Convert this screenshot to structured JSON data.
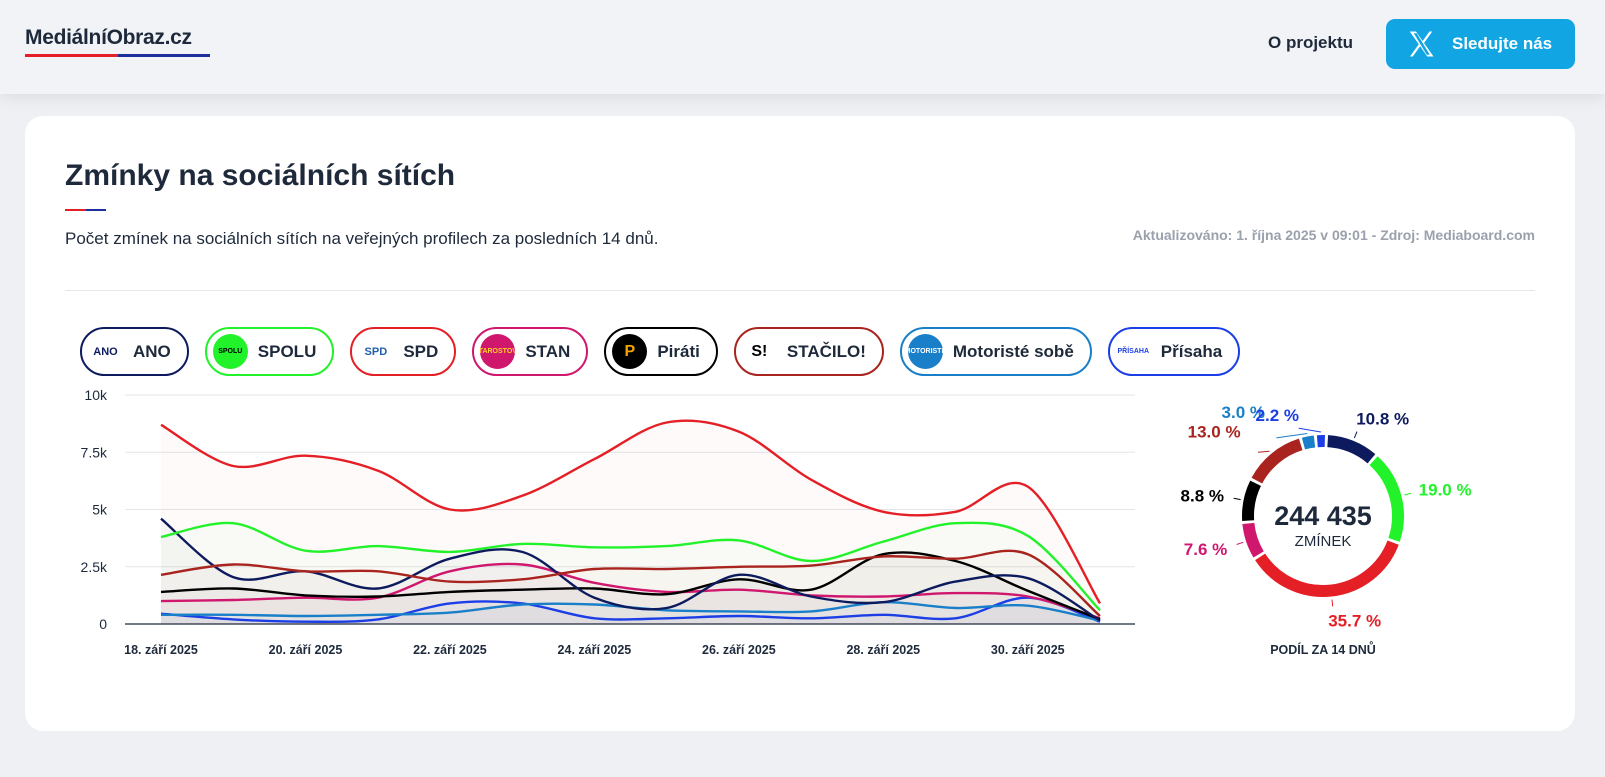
{
  "header": {
    "logo": "MediálníObraz.cz",
    "nav_about": "O projektu",
    "follow_label": "Sledujte nás",
    "follow_icon": "x-logo-icon"
  },
  "section": {
    "title": "Zmínky na sociálních sítích",
    "subtitle": "Počet zmínek na sociálních sítích na veřejných profilech za posledních 14 dnů.",
    "updated": "Aktualizováno: 1. října 2025 v 09:01 - Zdroj: Mediaboard.com"
  },
  "parties": [
    {
      "name": "ANO",
      "color": "#0d1b5e",
      "badge_bg": "#ffffff",
      "badge_text": "ANO",
      "badge_text_color": "#0d1b5e"
    },
    {
      "name": "SPOLU",
      "color": "#22f22a",
      "badge_bg": "#22f22a",
      "badge_text": "SPOLU",
      "badge_text_color": "#000000"
    },
    {
      "name": "SPD",
      "color": "#e41f26",
      "badge_bg": "#ffffff",
      "badge_text": "SPD",
      "badge_text_color": "#1f5ea8"
    },
    {
      "name": "STAN",
      "color": "#d0176e",
      "badge_bg": "#d0176e",
      "badge_text": "STAROSTOVÉ",
      "badge_text_color": "#ffd21f"
    },
    {
      "name": "Piráti",
      "color": "#000000",
      "badge_bg": "#000000",
      "badge_text": "P",
      "badge_text_color": "#f4a300"
    },
    {
      "name": "STAČILO!",
      "color": "#a9241e",
      "badge_bg": "#ffffff",
      "badge_text": "S!",
      "badge_text_color": "#000000"
    },
    {
      "name": "Motoristé sobě",
      "color": "#1a7fc9",
      "badge_bg": "#1a7fc9",
      "badge_text": "MOTORISTÉ",
      "badge_text_color": "#ffffff"
    },
    {
      "name": "Přísaha",
      "color": "#1b3ee6",
      "badge_bg": "#ffffff",
      "badge_text": "PŘÍSAHA",
      "badge_text_color": "#1b3ee6"
    }
  ],
  "chart_data": {
    "type": "area",
    "y_ticks": [
      "0",
      "2.5k",
      "5k",
      "7.5k",
      "10k"
    ],
    "ylim": [
      0,
      10000
    ],
    "x_tick_labels": [
      "18. září 2025",
      "20. září 2025",
      "22. září 2025",
      "24. září 2025",
      "26. září 2025",
      "28. září 2025",
      "30. září 2025"
    ],
    "x": [
      "2025-09-18",
      "2025-09-19",
      "2025-09-20",
      "2025-09-21",
      "2025-09-22",
      "2025-09-23",
      "2025-09-24",
      "2025-09-25",
      "2025-09-26",
      "2025-09-27",
      "2025-09-28",
      "2025-09-29",
      "2025-09-30",
      "2025-10-01"
    ],
    "series": [
      {
        "name": "SPD",
        "color": "#e41f26",
        "values": [
          8700,
          6900,
          7350,
          6700,
          5000,
          5600,
          7200,
          8800,
          8400,
          6300,
          4900,
          4900,
          6000,
          900
        ]
      },
      {
        "name": "SPOLU",
        "color": "#22f22a",
        "values": [
          3800,
          4400,
          3200,
          3400,
          3150,
          3500,
          3350,
          3400,
          3650,
          2750,
          3600,
          4400,
          3850,
          600
        ]
      },
      {
        "name": "STAČILO!",
        "color": "#a9241e",
        "values": [
          2150,
          2600,
          2300,
          2300,
          1850,
          1950,
          2400,
          2400,
          2500,
          2550,
          2950,
          2850,
          3050,
          350
        ]
      },
      {
        "name": "ANO",
        "color": "#0d1b5e",
        "values": [
          4600,
          2050,
          2300,
          1550,
          2850,
          3150,
          1150,
          700,
          2150,
          1200,
          950,
          1850,
          2000,
          150
        ]
      },
      {
        "name": "Piráti",
        "color": "#000000",
        "values": [
          1400,
          1550,
          1250,
          1200,
          1400,
          1500,
          1550,
          1300,
          1950,
          1500,
          3050,
          2750,
          1450,
          200
        ]
      },
      {
        "name": "STAN",
        "color": "#d0176e",
        "values": [
          1000,
          1050,
          1150,
          1150,
          2300,
          2600,
          1800,
          1400,
          1500,
          1250,
          1200,
          1350,
          1200,
          250
        ]
      },
      {
        "name": "Motoristé sobě",
        "color": "#1a7fc9",
        "values": [
          400,
          400,
          350,
          400,
          500,
          850,
          850,
          600,
          550,
          550,
          950,
          700,
          800,
          150
        ]
      },
      {
        "name": "Přísaha",
        "color": "#1b3ee6",
        "values": [
          450,
          200,
          100,
          200,
          900,
          900,
          250,
          250,
          350,
          250,
          400,
          250,
          1150,
          100
        ]
      }
    ]
  },
  "donut": {
    "total": "244 435",
    "total_caption": "ZMÍNEK",
    "caption": "PODÍL ZA 14 DNŮ",
    "slices": [
      {
        "name": "ANO",
        "value": 10.8,
        "label": "10.8 %",
        "color": "#0d1b5e"
      },
      {
        "name": "SPOLU",
        "value": 19.0,
        "label": "19.0 %",
        "color": "#22f22a"
      },
      {
        "name": "SPD",
        "value": 35.7,
        "label": "35.7 %",
        "color": "#e41f26"
      },
      {
        "name": "STAN",
        "value": 7.6,
        "label": "7.6 %",
        "color": "#d0176e"
      },
      {
        "name": "Piráti",
        "value": 8.8,
        "label": "8.8 %",
        "color": "#000000"
      },
      {
        "name": "STAČILO!",
        "value": 13.0,
        "label": "13.0 %",
        "color": "#a9241e"
      },
      {
        "name": "Motoristé sobě",
        "value": 3.0,
        "label": "3.0 %",
        "color": "#1a7fc9"
      },
      {
        "name": "Přísaha",
        "value": 2.2,
        "label": "2.2 %",
        "color": "#1b3ee6"
      }
    ]
  }
}
